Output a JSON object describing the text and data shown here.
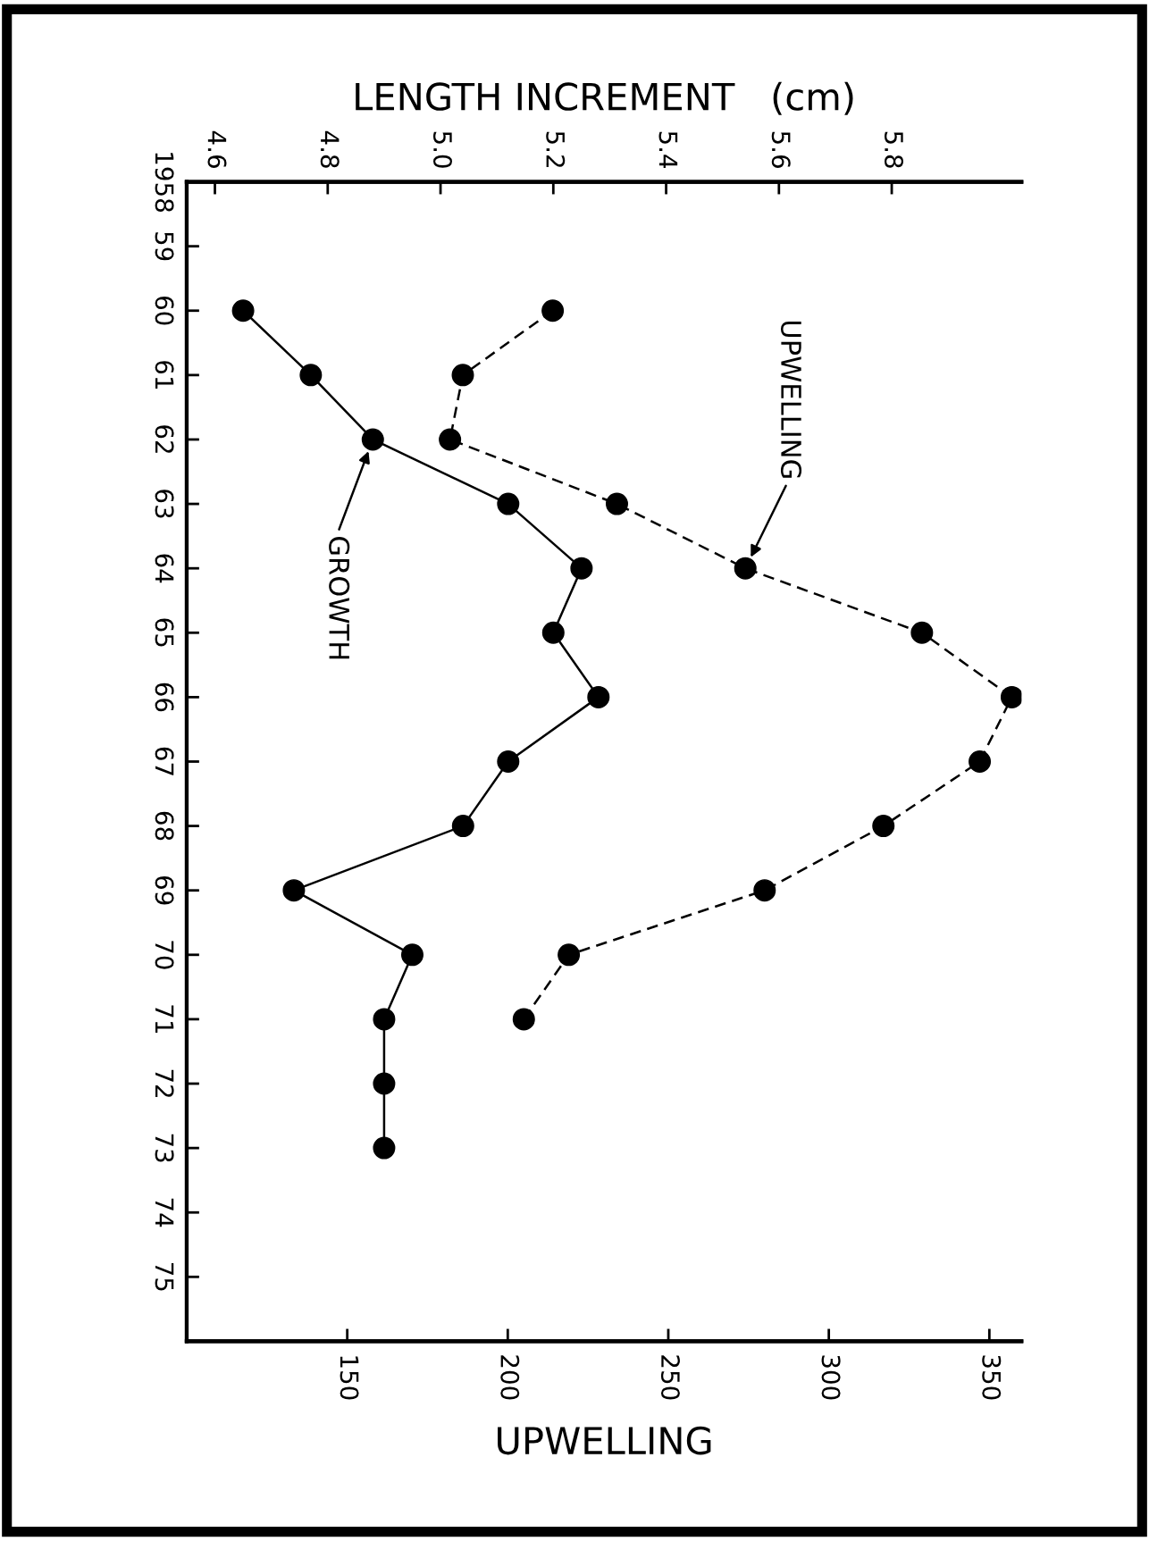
{
  "chart_data": {
    "type": "line",
    "orientation": "horizontal",
    "marker": "circle",
    "grid": false,
    "legend": false,
    "xlabel": "UPWELLING",
    "x2label": "LENGTH INCREMENT   (cm)",
    "x": [
      1960,
      1961,
      1962,
      1963,
      1964,
      1965,
      1966,
      1967,
      1968,
      1969,
      1970,
      1971,
      1972,
      1973
    ],
    "series": [
      {
        "color": "#000000",
        "axis": "x2",
        "line_style": "solid",
        "values": [
          4.65,
          4.77,
          4.88,
          5.12,
          5.25,
          5.2,
          5.28,
          5.12,
          5.04,
          4.74,
          4.95,
          4.9,
          4.9,
          4.9
        ]
      },
      {
        "color": "#000000",
        "line_style": "dashed",
        "values": [
          214,
          186,
          182,
          234,
          274,
          329,
          357,
          347,
          317,
          280,
          219,
          205,
          null,
          null
        ]
      }
    ],
    "xlim": [
      100,
      360
    ],
    "xticks": [
      150,
      200,
      250,
      300,
      350
    ],
    "x2lim": [
      4.55,
      6.03
    ],
    "x2ticks": [
      4.6,
      4.8,
      {
        "value": 5.0,
        "label": "5.0"
      },
      5.2,
      5.4,
      5.6,
      5.8
    ],
    "ylim": [
      1976,
      1958
    ],
    "yticks": [
      1958,
      {
        "value": 1959,
        "label": "59"
      },
      {
        "value": 1960,
        "label": "60"
      },
      {
        "value": 1961,
        "label": "61"
      },
      {
        "value": 1962,
        "label": "62"
      },
      {
        "value": 1963,
        "label": "63"
      },
      {
        "value": 1964,
        "label": "64"
      },
      {
        "value": 1965,
        "label": "65"
      },
      {
        "value": 1966,
        "label": "66"
      },
      {
        "value": 1967,
        "label": "67"
      },
      {
        "value": 1968,
        "label": "68"
      },
      {
        "value": 1969,
        "label": "69"
      },
      {
        "value": 1970,
        "label": "70"
      },
      {
        "value": 1971,
        "label": "71"
      },
      {
        "value": 1972,
        "label": "72"
      },
      {
        "value": 1973,
        "label": "73"
      },
      {
        "value": 1974,
        "label": "74"
      },
      {
        "value": 1975,
        "label": "75"
      }
    ],
    "annotations": [
      "GROWTH",
      "UPWELLING"
    ]
  }
}
